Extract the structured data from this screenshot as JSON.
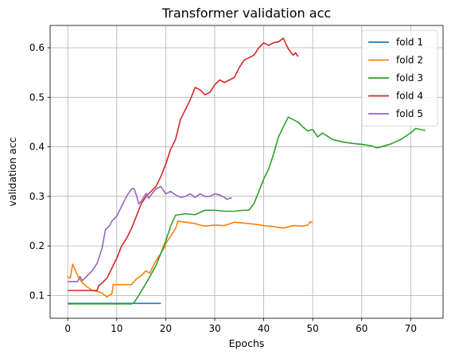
{
  "chart_data": {
    "type": "line",
    "title": "Transformer validation acc",
    "xlabel": "Epochs",
    "ylabel": "validation acc",
    "xlim": [
      -3.6,
      76.6
    ],
    "ylim": [
      0.054,
      0.645
    ],
    "xticks": [
      "0",
      "10",
      "20",
      "30",
      "40",
      "50",
      "60",
      "70"
    ],
    "xtick_values": [
      0,
      10,
      20,
      30,
      40,
      50,
      60,
      70
    ],
    "yticks": [
      "0.1",
      "0.2",
      "0.3",
      "0.4",
      "0.5",
      "0.6"
    ],
    "ytick_values": [
      0.1,
      0.2,
      0.3,
      0.4,
      0.5,
      0.6
    ],
    "grid": true,
    "legend_position": "top-right",
    "series": [
      {
        "name": "fold 1",
        "color": "#1f77b4",
        "points": [
          [
            0,
            0.084
          ],
          [
            19,
            0.084
          ]
        ]
      },
      {
        "name": "fold 2",
        "color": "#ff7f0e",
        "points": [
          [
            0,
            0.138
          ],
          [
            0.5,
            0.135
          ],
          [
            1,
            0.163
          ],
          [
            1.5,
            0.152
          ],
          [
            2,
            0.14
          ],
          [
            3,
            0.125
          ],
          [
            4,
            0.117
          ],
          [
            5,
            0.11
          ],
          [
            6,
            0.108
          ],
          [
            7,
            0.105
          ],
          [
            8,
            0.097
          ],
          [
            8.5,
            0.101
          ],
          [
            9,
            0.103
          ],
          [
            9.3,
            0.122
          ],
          [
            10,
            0.122
          ],
          [
            12,
            0.122
          ],
          [
            13,
            0.122
          ],
          [
            14,
            0.133
          ],
          [
            15,
            0.14
          ],
          [
            16,
            0.15
          ],
          [
            16.7,
            0.145
          ],
          [
            17.5,
            0.16
          ],
          [
            18,
            0.17
          ],
          [
            19,
            0.185
          ],
          [
            19.8,
            0.198
          ],
          [
            20,
            0.205
          ],
          [
            21,
            0.22
          ],
          [
            22,
            0.235
          ],
          [
            22.5,
            0.25
          ],
          [
            24,
            0.248
          ],
          [
            26,
            0.245
          ],
          [
            27,
            0.242
          ],
          [
            28,
            0.24
          ],
          [
            30,
            0.242
          ],
          [
            32,
            0.241
          ],
          [
            34,
            0.248
          ],
          [
            36,
            0.246
          ],
          [
            38,
            0.244
          ],
          [
            40,
            0.241
          ],
          [
            42,
            0.239
          ],
          [
            44,
            0.236
          ],
          [
            46,
            0.241
          ],
          [
            48,
            0.24
          ],
          [
            49,
            0.242
          ],
          [
            49.5,
            0.249
          ],
          [
            50,
            0.247
          ]
        ]
      },
      {
        "name": "fold 3",
        "color": "#2ca02c",
        "points": [
          [
            0,
            0.083
          ],
          [
            13,
            0.083
          ],
          [
            13.5,
            0.085
          ],
          [
            14.5,
            0.1
          ],
          [
            16,
            0.125
          ],
          [
            18,
            0.16
          ],
          [
            19,
            0.185
          ],
          [
            20,
            0.21
          ],
          [
            21,
            0.24
          ],
          [
            22,
            0.262
          ],
          [
            24,
            0.265
          ],
          [
            26,
            0.263
          ],
          [
            28,
            0.272
          ],
          [
            30,
            0.272
          ],
          [
            32,
            0.27
          ],
          [
            34,
            0.27
          ],
          [
            36,
            0.272
          ],
          [
            37,
            0.272
          ],
          [
            38,
            0.285
          ],
          [
            39,
            0.31
          ],
          [
            40,
            0.335
          ],
          [
            41,
            0.355
          ],
          [
            42,
            0.385
          ],
          [
            43,
            0.42
          ],
          [
            44,
            0.44
          ],
          [
            45,
            0.46
          ],
          [
            46,
            0.455
          ],
          [
            47,
            0.45
          ],
          [
            48,
            0.44
          ],
          [
            49,
            0.432
          ],
          [
            50,
            0.435
          ],
          [
            51,
            0.42
          ],
          [
            52,
            0.428
          ],
          [
            54,
            0.415
          ],
          [
            56,
            0.41
          ],
          [
            58,
            0.407
          ],
          [
            60,
            0.405
          ],
          [
            62,
            0.402
          ],
          [
            63,
            0.398
          ],
          [
            64,
            0.4
          ],
          [
            66,
            0.406
          ],
          [
            68,
            0.415
          ],
          [
            70,
            0.428
          ],
          [
            71,
            0.437
          ],
          [
            72,
            0.435
          ],
          [
            73,
            0.433
          ]
        ]
      },
      {
        "name": "fold 4",
        "color": "#d62728",
        "points": [
          [
            0,
            0.11
          ],
          [
            6,
            0.11
          ],
          [
            6.3,
            0.12
          ],
          [
            7,
            0.125
          ],
          [
            8,
            0.135
          ],
          [
            9,
            0.155
          ],
          [
            10,
            0.175
          ],
          [
            11,
            0.2
          ],
          [
            12,
            0.215
          ],
          [
            13,
            0.235
          ],
          [
            14,
            0.26
          ],
          [
            15,
            0.285
          ],
          [
            16,
            0.3
          ],
          [
            17,
            0.31
          ],
          [
            18,
            0.32
          ],
          [
            19,
            0.34
          ],
          [
            20,
            0.365
          ],
          [
            21,
            0.395
          ],
          [
            22,
            0.415
          ],
          [
            23,
            0.455
          ],
          [
            24,
            0.475
          ],
          [
            25,
            0.495
          ],
          [
            26,
            0.52
          ],
          [
            27,
            0.515
          ],
          [
            28,
            0.505
          ],
          [
            29,
            0.51
          ],
          [
            30,
            0.525
          ],
          [
            31,
            0.535
          ],
          [
            32,
            0.53
          ],
          [
            33,
            0.535
          ],
          [
            34,
            0.54
          ],
          [
            35,
            0.56
          ],
          [
            36,
            0.575
          ],
          [
            37,
            0.58
          ],
          [
            38,
            0.585
          ],
          [
            39,
            0.6
          ],
          [
            40,
            0.61
          ],
          [
            41,
            0.605
          ],
          [
            42,
            0.61
          ],
          [
            43,
            0.612
          ],
          [
            44,
            0.619
          ],
          [
            45,
            0.598
          ],
          [
            46,
            0.585
          ],
          [
            46.5,
            0.59
          ],
          [
            47,
            0.582
          ]
        ]
      },
      {
        "name": "fold 5",
        "color": "#9467bd",
        "points": [
          [
            0,
            0.128
          ],
          [
            2,
            0.128
          ],
          [
            2.5,
            0.138
          ],
          [
            3,
            0.13
          ],
          [
            4,
            0.14
          ],
          [
            5,
            0.15
          ],
          [
            6,
            0.165
          ],
          [
            7,
            0.195
          ],
          [
            7.7,
            0.233
          ],
          [
            8.5,
            0.24
          ],
          [
            9,
            0.25
          ],
          [
            10,
            0.26
          ],
          [
            11,
            0.28
          ],
          [
            12,
            0.3
          ],
          [
            13,
            0.315
          ],
          [
            13.5,
            0.316
          ],
          [
            14,
            0.303
          ],
          [
            14.5,
            0.285
          ],
          [
            15,
            0.29
          ],
          [
            16,
            0.306
          ],
          [
            16.5,
            0.296
          ],
          [
            17,
            0.303
          ],
          [
            18,
            0.315
          ],
          [
            19,
            0.32
          ],
          [
            20,
            0.305
          ],
          [
            21,
            0.31
          ],
          [
            22,
            0.303
          ],
          [
            23,
            0.298
          ],
          [
            24,
            0.3
          ],
          [
            25,
            0.305
          ],
          [
            26,
            0.298
          ],
          [
            27,
            0.305
          ],
          [
            28,
            0.3
          ],
          [
            29,
            0.3
          ],
          [
            30,
            0.305
          ],
          [
            31,
            0.303
          ],
          [
            32,
            0.298
          ],
          [
            32.5,
            0.294
          ],
          [
            33,
            0.296
          ],
          [
            33.5,
            0.297
          ]
        ]
      }
    ]
  }
}
